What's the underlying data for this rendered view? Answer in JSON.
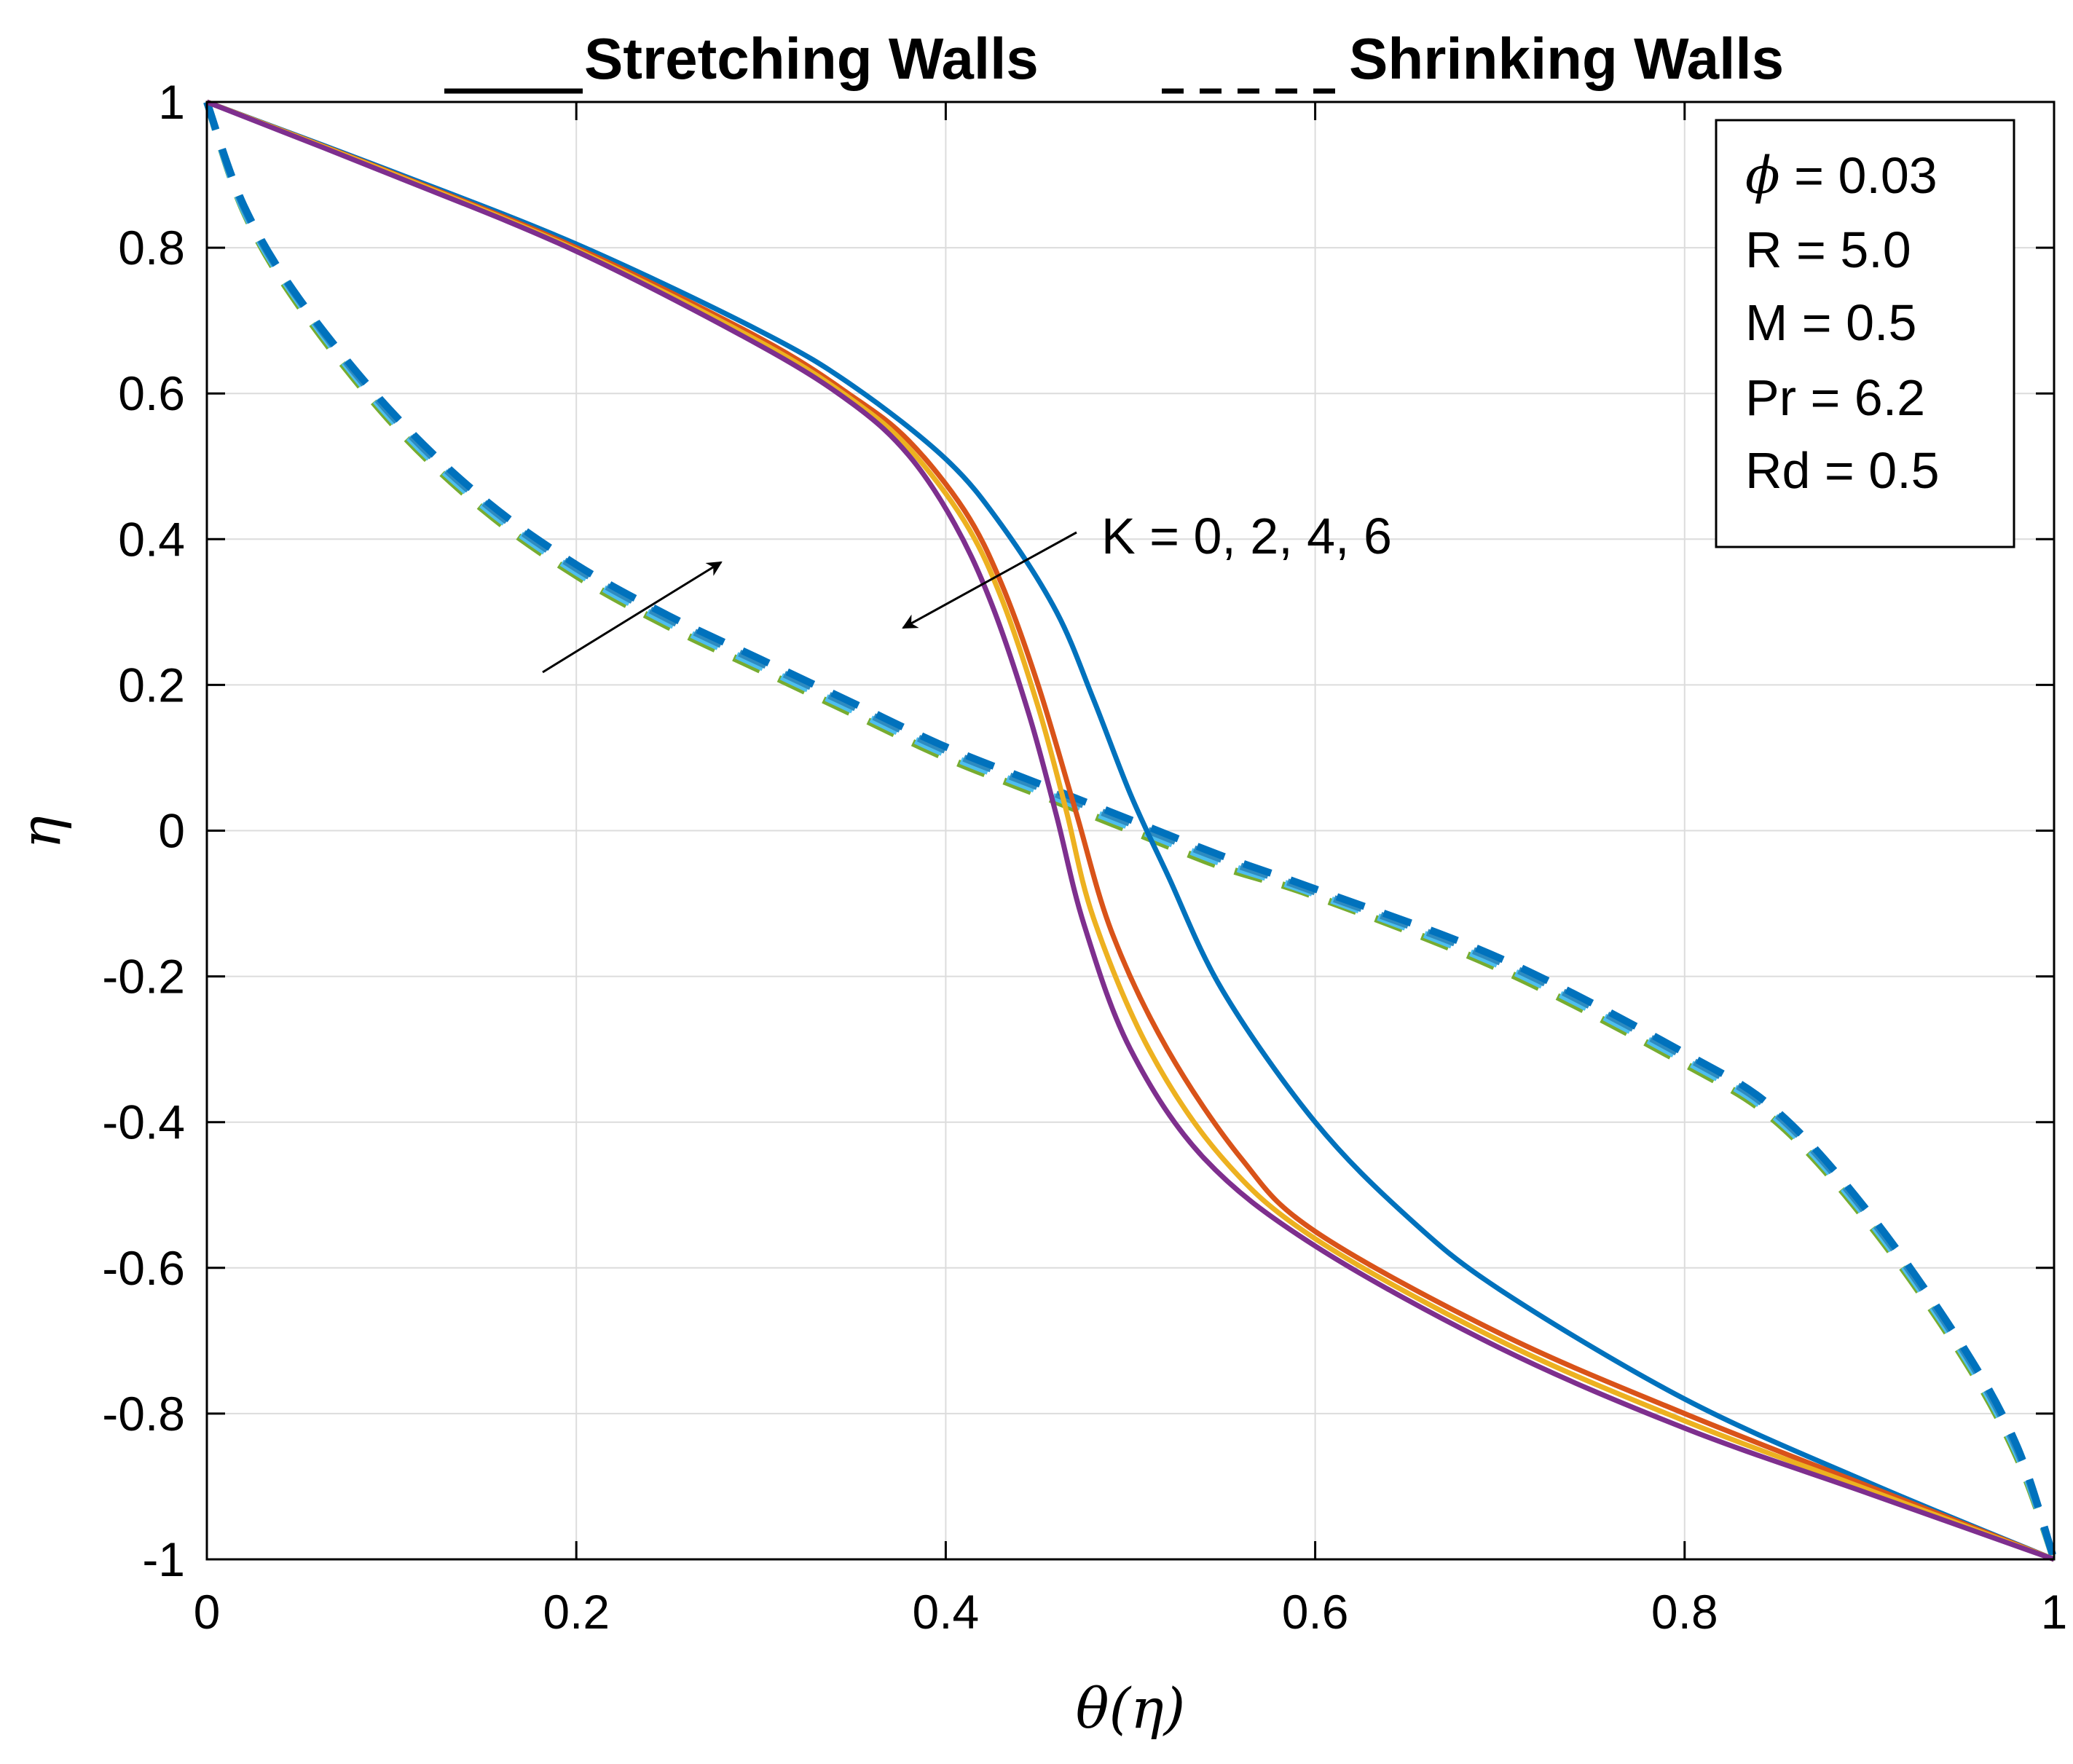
{
  "chart_data": {
    "type": "line",
    "titles": {
      "solid": "Stretching Walls",
      "dashed": "Shrinking Walls"
    },
    "xlabel": "θ(η)",
    "ylabel": "η",
    "xlim": [
      0,
      1
    ],
    "ylim": [
      -1,
      1
    ],
    "grid": true,
    "xticks": [
      {
        "value": 0,
        "label": "0"
      },
      {
        "value": 0.2,
        "label": "0.2"
      },
      {
        "value": 0.4,
        "label": "0.4"
      },
      {
        "value": 0.6,
        "label": "0.6"
      },
      {
        "value": 0.8,
        "label": "0.8"
      },
      {
        "value": 1,
        "label": "1"
      }
    ],
    "yticks": [
      {
        "value": 1,
        "label": "1"
      },
      {
        "value": 0.8,
        "label": "0.8"
      },
      {
        "value": 0.6,
        "label": "0.6"
      },
      {
        "value": 0.4,
        "label": "0.4"
      },
      {
        "value": 0.2,
        "label": "0.2"
      },
      {
        "value": 0,
        "label": "0"
      },
      {
        "value": -0.2,
        "label": "-0.2"
      },
      {
        "value": -0.4,
        "label": "-0.4"
      },
      {
        "value": -0.6,
        "label": "-0.6"
      },
      {
        "value": -0.8,
        "label": "-0.8"
      },
      {
        "value": -1,
        "label": "-1"
      }
    ],
    "parameters_box": {
      "lines": [
        {
          "symbol": "ϕ",
          "text": " = 0.03"
        },
        {
          "symbol": "",
          "text": "R = 5.0"
        },
        {
          "symbol": "",
          "text": "M = 0.5"
        },
        {
          "symbol": "",
          "text": "Pr = 6.2"
        },
        {
          "symbol": "",
          "text": "Rd = 0.5"
        }
      ]
    },
    "annotation": {
      "text": "K = 0, 2, 4, 6"
    },
    "series": [
      {
        "name": "K=0 stretching",
        "style": "solid",
        "color": "#0072BD",
        "points": [
          [
            0,
            1
          ],
          [
            0.1,
            0.905
          ],
          [
            0.2,
            0.805
          ],
          [
            0.3,
            0.685
          ],
          [
            0.35,
            0.61
          ],
          [
            0.4,
            0.51
          ],
          [
            0.43,
            0.42
          ],
          [
            0.46,
            0.3
          ],
          [
            0.48,
            0.18
          ],
          [
            0.5,
            0.05
          ],
          [
            0.52,
            -0.06
          ],
          [
            0.55,
            -0.22
          ],
          [
            0.6,
            -0.4
          ],
          [
            0.65,
            -0.53
          ],
          [
            0.7,
            -0.63
          ],
          [
            0.8,
            -0.78
          ],
          [
            0.9,
            -0.895
          ],
          [
            1,
            -1
          ]
        ]
      },
      {
        "name": "K=2 stretching",
        "style": "solid",
        "color": "#D95319",
        "points": [
          [
            0,
            1
          ],
          [
            0.1,
            0.903
          ],
          [
            0.2,
            0.8
          ],
          [
            0.3,
            0.675
          ],
          [
            0.35,
            0.595
          ],
          [
            0.38,
            0.535
          ],
          [
            0.41,
            0.44
          ],
          [
            0.43,
            0.34
          ],
          [
            0.45,
            0.2
          ],
          [
            0.47,
            0.03
          ],
          [
            0.49,
            -0.14
          ],
          [
            0.52,
            -0.3
          ],
          [
            0.56,
            -0.45
          ],
          [
            0.6,
            -0.55
          ],
          [
            0.7,
            -0.69
          ],
          [
            0.8,
            -0.8
          ],
          [
            0.9,
            -0.9
          ],
          [
            1,
            -1
          ]
        ]
      },
      {
        "name": "K=4 stretching",
        "style": "solid",
        "color": "#EDB120",
        "points": [
          [
            0,
            1
          ],
          [
            0.1,
            0.902
          ],
          [
            0.2,
            0.797
          ],
          [
            0.3,
            0.67
          ],
          [
            0.35,
            0.59
          ],
          [
            0.38,
            0.525
          ],
          [
            0.41,
            0.425
          ],
          [
            0.43,
            0.32
          ],
          [
            0.45,
            0.17
          ],
          [
            0.465,
            0.03
          ],
          [
            0.48,
            -0.12
          ],
          [
            0.51,
            -0.3
          ],
          [
            0.55,
            -0.45
          ],
          [
            0.6,
            -0.56
          ],
          [
            0.7,
            -0.7
          ],
          [
            0.8,
            -0.81
          ],
          [
            0.9,
            -0.905
          ],
          [
            1,
            -1
          ]
        ]
      },
      {
        "name": "K=6 stretching",
        "style": "solid",
        "color": "#7E2F8E",
        "points": [
          [
            0,
            1
          ],
          [
            0.1,
            0.9
          ],
          [
            0.2,
            0.795
          ],
          [
            0.3,
            0.665
          ],
          [
            0.35,
            0.585
          ],
          [
            0.38,
            0.515
          ],
          [
            0.405,
            0.42
          ],
          [
            0.425,
            0.31
          ],
          [
            0.445,
            0.16
          ],
          [
            0.46,
            0.02
          ],
          [
            0.475,
            -0.13
          ],
          [
            0.5,
            -0.3
          ],
          [
            0.54,
            -0.45
          ],
          [
            0.6,
            -0.57
          ],
          [
            0.7,
            -0.71
          ],
          [
            0.8,
            -0.82
          ],
          [
            0.9,
            -0.91
          ],
          [
            1,
            -1
          ]
        ]
      },
      {
        "name": "K=0 shrinking",
        "style": "dashed",
        "color": "#77AC30",
        "points": [
          [
            0,
            1
          ],
          [
            0.02,
            0.85
          ],
          [
            0.05,
            0.72
          ],
          [
            0.1,
            0.56
          ],
          [
            0.15,
            0.44
          ],
          [
            0.2,
            0.35
          ],
          [
            0.25,
            0.28
          ],
          [
            0.3,
            0.22
          ],
          [
            0.35,
            0.16
          ],
          [
            0.4,
            0.1
          ],
          [
            0.45,
            0.05
          ],
          [
            0.5,
            0
          ],
          [
            0.55,
            -0.05
          ],
          [
            0.6,
            -0.09
          ],
          [
            0.7,
            -0.19
          ],
          [
            0.8,
            -0.32
          ],
          [
            0.85,
            -0.4
          ],
          [
            0.9,
            -0.54
          ],
          [
            0.95,
            -0.72
          ],
          [
            0.98,
            -0.86
          ],
          [
            1,
            -1
          ]
        ]
      },
      {
        "name": "K=2 shrinking",
        "style": "dashed",
        "color": "#4DBEEE",
        "points": [
          [
            0,
            1
          ],
          [
            0.02,
            0.852
          ],
          [
            0.05,
            0.725
          ],
          [
            0.1,
            0.565
          ],
          [
            0.15,
            0.445
          ],
          [
            0.2,
            0.355
          ],
          [
            0.25,
            0.285
          ],
          [
            0.3,
            0.225
          ],
          [
            0.35,
            0.165
          ],
          [
            0.4,
            0.105
          ],
          [
            0.45,
            0.055
          ],
          [
            0.5,
            0.005
          ],
          [
            0.55,
            -0.045
          ],
          [
            0.6,
            -0.087
          ],
          [
            0.7,
            -0.185
          ],
          [
            0.8,
            -0.315
          ],
          [
            0.85,
            -0.395
          ],
          [
            0.9,
            -0.535
          ],
          [
            0.95,
            -0.715
          ],
          [
            0.98,
            -0.855
          ],
          [
            1,
            -1
          ]
        ]
      },
      {
        "name": "K=4 shrinking",
        "style": "dashed",
        "color": "#2E8BC0",
        "points": [
          [
            0,
            1
          ],
          [
            0.02,
            0.855
          ],
          [
            0.05,
            0.728
          ],
          [
            0.1,
            0.57
          ],
          [
            0.15,
            0.45
          ],
          [
            0.2,
            0.36
          ],
          [
            0.25,
            0.29
          ],
          [
            0.3,
            0.23
          ],
          [
            0.35,
            0.17
          ],
          [
            0.4,
            0.11
          ],
          [
            0.45,
            0.06
          ],
          [
            0.5,
            0.01
          ],
          [
            0.55,
            -0.04
          ],
          [
            0.6,
            -0.084
          ],
          [
            0.7,
            -0.18
          ],
          [
            0.8,
            -0.31
          ],
          [
            0.85,
            -0.39
          ],
          [
            0.9,
            -0.53
          ],
          [
            0.95,
            -0.71
          ],
          [
            0.98,
            -0.85
          ],
          [
            1,
            -1
          ]
        ]
      },
      {
        "name": "K=6 shrinking",
        "style": "dashed",
        "color": "#0072BD",
        "points": [
          [
            0,
            1
          ],
          [
            0.02,
            0.858
          ],
          [
            0.05,
            0.73
          ],
          [
            0.1,
            0.575
          ],
          [
            0.15,
            0.455
          ],
          [
            0.2,
            0.365
          ],
          [
            0.25,
            0.295
          ],
          [
            0.3,
            0.235
          ],
          [
            0.35,
            0.175
          ],
          [
            0.4,
            0.115
          ],
          [
            0.45,
            0.065
          ],
          [
            0.5,
            0.015
          ],
          [
            0.55,
            -0.035
          ],
          [
            0.6,
            -0.08
          ],
          [
            0.7,
            -0.175
          ],
          [
            0.8,
            -0.305
          ],
          [
            0.85,
            -0.385
          ],
          [
            0.9,
            -0.525
          ],
          [
            0.95,
            -0.705
          ],
          [
            0.98,
            -0.845
          ],
          [
            1,
            -1
          ]
        ]
      }
    ]
  }
}
